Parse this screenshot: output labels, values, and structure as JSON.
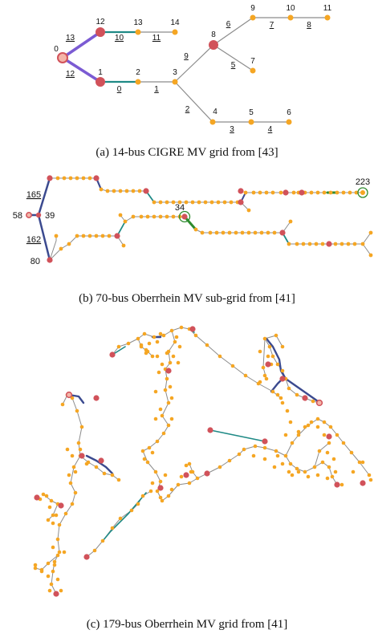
{
  "colors": {
    "bus": "#f5a623",
    "big_bus": "#d1525a",
    "line": "#8c8c8c",
    "slack_fill": "#f4b5a8",
    "slack_ring": "#d1525a",
    "purple": "#7b5bd3",
    "teal": "#1f8a86",
    "navy": "#3b4a8f",
    "green": "#2e8b2e"
  },
  "panel_a": {
    "caption": "(a) 14-bus CIGRE MV grid from [43]",
    "node_labels": [
      "0",
      "1",
      "2",
      "3",
      "4",
      "5",
      "6",
      "7",
      "8",
      "9",
      "10",
      "11",
      "12",
      "13",
      "14"
    ],
    "edge_labels": [
      "0",
      "1",
      "2",
      "3",
      "4",
      "5",
      "6",
      "7",
      "8",
      "9",
      "10",
      "11",
      "12",
      "13"
    ]
  },
  "panel_b": {
    "caption": "(b) 70-bus Oberrhein MV sub-grid from [41]",
    "node_labels": {
      "n58": "58",
      "n39": "39",
      "n80": "80",
      "n34": "34",
      "n223": "223"
    },
    "edge_labels": {
      "e165": "165",
      "e162": "162"
    }
  },
  "panel_c": {
    "caption": "(c) 179-bus Oberrhein MV grid from [41]"
  }
}
